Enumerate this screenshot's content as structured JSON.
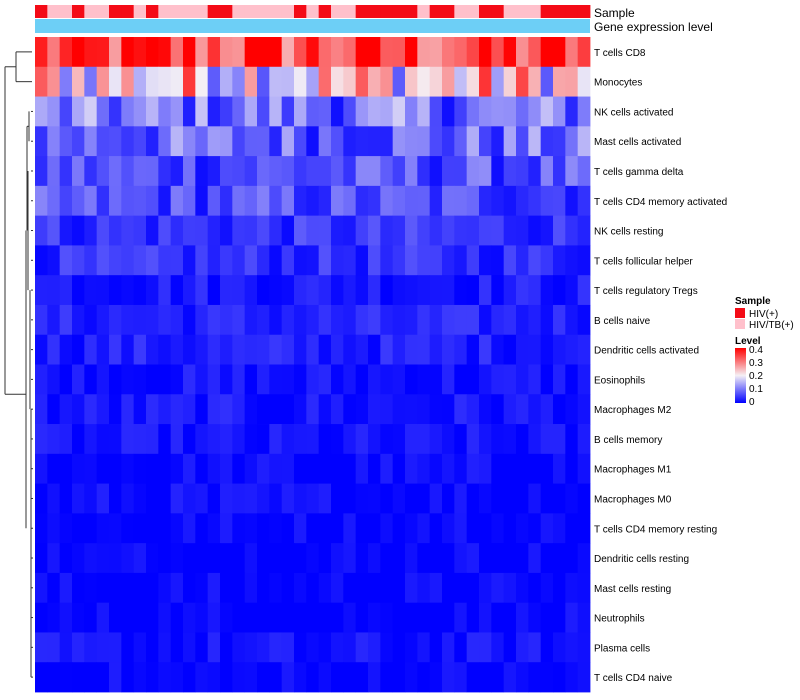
{
  "chart_data": {
    "type": "heatmap",
    "annotation_tracks": [
      "Sample",
      "Gene expression level"
    ],
    "sample_colors": {
      "HIV(+)": "#f40b16",
      "HIV/TB(+)": "#ffc0cb"
    },
    "gene_expression_color": "#6dcff6",
    "sample_groups": [
      1,
      0,
      0,
      1,
      0,
      0,
      1,
      1,
      0,
      1,
      0,
      0,
      0,
      0,
      1,
      1,
      0,
      0,
      0,
      0,
      0,
      1,
      0,
      1,
      0,
      0,
      1,
      1,
      1,
      1,
      1,
      0,
      1,
      1,
      0,
      0,
      1,
      1,
      0,
      0,
      0,
      1,
      1,
      1,
      1
    ],
    "rows": [
      "T cells CD8",
      "Monocytes",
      "NK cells activated",
      "Mast cells activated",
      "T cells gamma delta",
      "T cells CD4 memory activated",
      "NK cells resting",
      "T cells follicular helper",
      "T cells regulatory  Tregs",
      "B cells naive",
      "Dendritic cells activated",
      "Eosinophils",
      "Macrophages M2",
      "B cells memory",
      "Macrophages M1",
      "Macrophages M0",
      "T cells CD4 memory resting",
      "Dendritic cells resting",
      "Mast cells resting",
      "Neutrophils",
      "Plasma cells",
      "T cells CD4 naive"
    ],
    "row_base_values": [
      0.33,
      0.22,
      0.1,
      0.09,
      0.07,
      0.065,
      0.045,
      0.04,
      0.025,
      0.03,
      0.028,
      0.015,
      0.018,
      0.012,
      0.006,
      0.008,
      0.004,
      0.004,
      0.002,
      0.001,
      0.012,
      0.003
    ],
    "n_columns": 45,
    "legend": {
      "sample_title": "Sample",
      "sample_entries": [
        "HIV(+)",
        "HIV/TB(+)"
      ],
      "level_title": "Level",
      "level_ticks": [
        "0.4",
        "0.3",
        "0.2",
        "0.1",
        "0"
      ],
      "level_range": [
        0,
        0.4
      ],
      "colormap": [
        "#0000ff",
        "#f5f0f5",
        "#ff0000"
      ]
    }
  }
}
